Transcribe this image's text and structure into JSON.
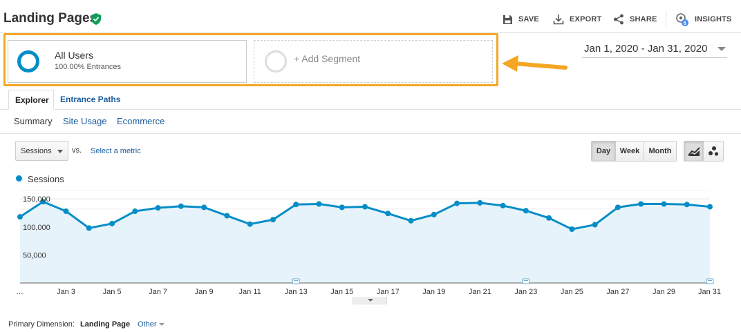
{
  "header": {
    "title": "Landing Pages",
    "save_label": "SAVE",
    "export_label": "EXPORT",
    "share_label": "SHARE",
    "insights_label": "INSIGHTS",
    "insights_badge": "6"
  },
  "segments": {
    "active": {
      "name": "All Users",
      "detail": "100.00% Entrances",
      "color": "#058dc7"
    },
    "add_label": "+ Add Segment",
    "highlight_color": "#f5a623"
  },
  "date_range": "Jan 1, 2020 - Jan 31, 2020",
  "tabs": [
    {
      "label": "Explorer",
      "active": true
    },
    {
      "label": "Entrance Paths",
      "active": false
    }
  ],
  "subtabs": [
    {
      "label": "Summary",
      "active": true
    },
    {
      "label": "Site Usage",
      "active": false
    },
    {
      "label": "Ecommerce",
      "active": false
    }
  ],
  "metric": {
    "selected": "Sessions",
    "vs_label": "vs.",
    "select_metric_label": "Select a metric"
  },
  "periods": [
    {
      "label": "Day",
      "active": true
    },
    {
      "label": "Week",
      "active": false
    },
    {
      "label": "Month",
      "active": false
    }
  ],
  "legend": {
    "label": "Sessions",
    "color": "#058dc7"
  },
  "chart_data": {
    "type": "area",
    "series": [
      {
        "name": "Sessions",
        "x": [
          "Jan 1",
          "Jan 2",
          "Jan 3",
          "Jan 4",
          "Jan 5",
          "Jan 6",
          "Jan 7",
          "Jan 8",
          "Jan 9",
          "Jan 10",
          "Jan 11",
          "Jan 12",
          "Jan 13",
          "Jan 14",
          "Jan 15",
          "Jan 16",
          "Jan 17",
          "Jan 18",
          "Jan 19",
          "Jan 20",
          "Jan 21",
          "Jan 22",
          "Jan 23",
          "Jan 24",
          "Jan 25",
          "Jan 26",
          "Jan 27",
          "Jan 28",
          "Jan 29",
          "Jan 30",
          "Jan 31"
        ],
        "values": [
          118000,
          145000,
          128000,
          98000,
          106000,
          128000,
          134000,
          137000,
          135000,
          120000,
          105000,
          113000,
          140000,
          141000,
          135000,
          136000,
          124000,
          111000,
          122000,
          142000,
          143000,
          138000,
          129000,
          116000,
          96000,
          104000,
          135000,
          141000,
          141000,
          140000,
          136000
        ]
      }
    ],
    "x_tick_labels": [
      "…",
      "Jan 3",
      "Jan 5",
      "Jan 7",
      "Jan 9",
      "Jan 11",
      "Jan 13",
      "Jan 15",
      "Jan 17",
      "Jan 19",
      "Jan 21",
      "Jan 23",
      "Jan 25",
      "Jan 27",
      "Jan 29",
      "Jan 31"
    ],
    "y_tick_labels": [
      "150,000",
      "100,000",
      "50,000"
    ],
    "y_ticks": [
      150000,
      100000,
      50000
    ],
    "ylim": [
      0,
      150000
    ],
    "annotation_markers": [
      "Jan 13",
      "Jan 23",
      "Jan 31"
    ],
    "line_color": "#058dc7",
    "fill_color": "#e6f3fa",
    "grid": true
  },
  "footer": {
    "primary_dimension_label": "Primary Dimension:",
    "primary_dimension_value": "Landing Page",
    "other_label": "Other"
  }
}
